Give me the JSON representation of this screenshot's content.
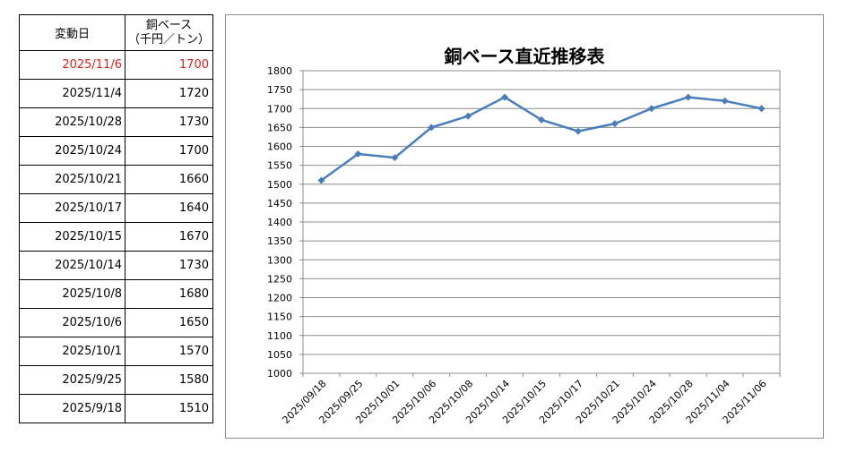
{
  "table": {
    "header": {
      "date_label": "変動日",
      "value_label_line1": "銅ベース",
      "value_label_line2": "（千円／トン）"
    },
    "rows": [
      {
        "date": "2025/11/6",
        "value": "1700",
        "highlight": true
      },
      {
        "date": "2025/11/4",
        "value": "1720"
      },
      {
        "date": "2025/10/28",
        "value": "1730"
      },
      {
        "date": "2025/10/24",
        "value": "1700"
      },
      {
        "date": "2025/10/21",
        "value": "1660"
      },
      {
        "date": "2025/10/17",
        "value": "1640"
      },
      {
        "date": "2025/10/15",
        "value": "1670"
      },
      {
        "date": "2025/10/14",
        "value": "1730"
      },
      {
        "date": "2025/10/8",
        "value": "1680"
      },
      {
        "date": "2025/10/6",
        "value": "1650"
      },
      {
        "date": "2025/10/1",
        "value": "1570"
      },
      {
        "date": "2025/9/25",
        "value": "1580"
      },
      {
        "date": "2025/9/18",
        "value": "1510"
      }
    ],
    "highlight_color": "#e0201b"
  },
  "chart_data": {
    "type": "line",
    "title": "銅ベース直近推移表",
    "xlabel": "",
    "ylabel": "",
    "categories": [
      "2025/09/18",
      "2025/09/25",
      "2025/10/01",
      "2025/10/06",
      "2025/10/08",
      "2025/10/14",
      "2025/10/15",
      "2025/10/17",
      "2025/10/21",
      "2025/10/24",
      "2025/10/28",
      "2025/11/04",
      "2025/11/06"
    ],
    "series": [
      {
        "values": [
          1510,
          1580,
          1570,
          1650,
          1680,
          1730,
          1670,
          1640,
          1660,
          1700,
          1730,
          1720,
          1700
        ]
      }
    ],
    "ylim": [
      1000,
      1800
    ],
    "ytick_step": 50,
    "grid": true,
    "legend": "none",
    "line_color": "#4a7ebb",
    "marker": "diamond"
  }
}
